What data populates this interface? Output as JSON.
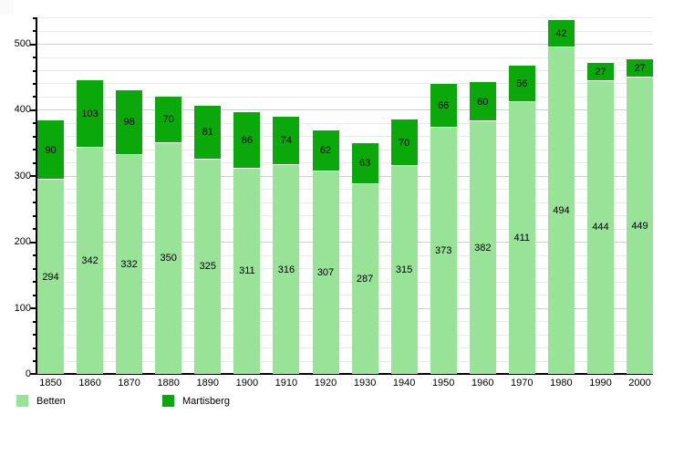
{
  "page": {
    "background": "#ffffff",
    "corner_artifact_color": "#fafafa"
  },
  "chart_data": {
    "type": "bar",
    "stacked": true,
    "title": "",
    "xlabel": "",
    "ylabel": "",
    "categories": [
      "1850",
      "1860",
      "1870",
      "1880",
      "1890",
      "1900",
      "1910",
      "1920",
      "1930",
      "1940",
      "1950",
      "1960",
      "1970",
      "1980",
      "1990",
      "2000"
    ],
    "series": [
      {
        "name": "Betten",
        "color": "#99e399",
        "values": [
          294,
          342,
          332,
          350,
          325,
          311,
          316,
          307,
          287,
          315,
          373,
          382,
          411,
          494,
          444,
          449
        ]
      },
      {
        "name": "Martisberg",
        "color": "#0ba80b",
        "values": [
          90,
          103,
          98,
          70,
          81,
          86,
          74,
          62,
          63,
          70,
          66,
          60,
          56,
          42,
          27,
          27
        ]
      }
    ],
    "totals": [
      384,
      445,
      430,
      420,
      406,
      397,
      390,
      369,
      350,
      385,
      439,
      442,
      467,
      536,
      471,
      476
    ],
    "ylim": [
      0,
      540
    ],
    "yticks": [
      0,
      100,
      200,
      300,
      400,
      500
    ],
    "minor_grid_step": 20,
    "grid": true,
    "value_labels": "inside-center",
    "legend_position": "bottom-left",
    "colors": {
      "grid_minor": "#e9e9e9",
      "grid_major": "#cdcdcd",
      "axis": "#000000",
      "label_text": "#000000",
      "segment_separator": "#ffffff"
    }
  },
  "legend": {
    "items": [
      {
        "label": "Betten",
        "color": "#99e399"
      },
      {
        "label": "Martisberg",
        "color": "#0ba80b"
      }
    ]
  }
}
